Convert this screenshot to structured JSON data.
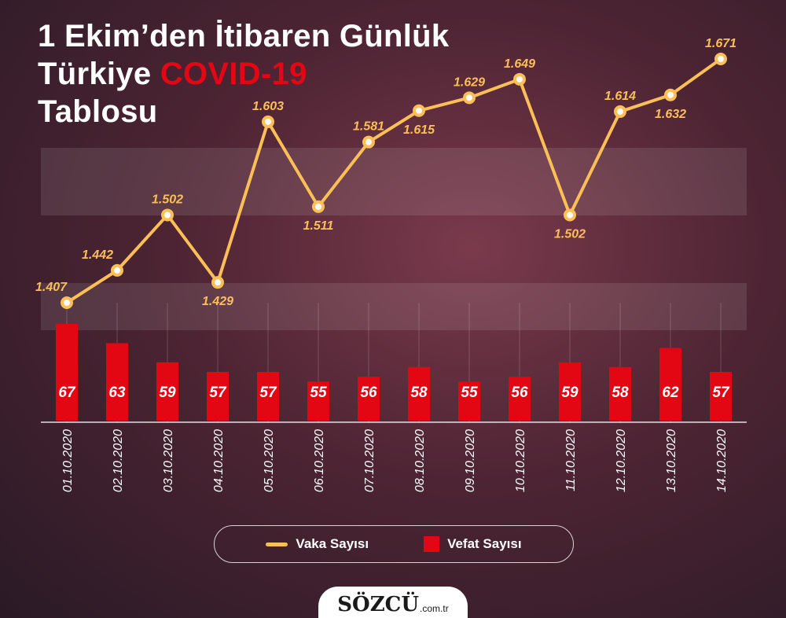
{
  "title": {
    "line1": "1 Ekim’den İtibaren Günlük",
    "line2_prefix": "Türkiye ",
    "line2_accent": "COVID-19",
    "line3": "Tablosu"
  },
  "colors": {
    "line": "#fbbf58",
    "bars": "#e30613",
    "accent": "#e30613"
  },
  "legend": {
    "line_label": "Vaka Sayısı",
    "bar_label": "Vefat Sayısı"
  },
  "logo": {
    "name": "SÖZCÜ",
    "suffix": ".com.tr"
  },
  "chart_data": {
    "type": "line+bar",
    "categories": [
      "01.10.2020",
      "02.10.2020",
      "03.10.2020",
      "04.10.2020",
      "05.10.2020",
      "06.10.2020",
      "07.10.2020",
      "08.10.2020",
      "09.10.2020",
      "10.10.2020",
      "11.10.2020",
      "12.10.2020",
      "13.10.2020",
      "14.10.2020"
    ],
    "series": [
      {
        "name": "Vaka Sayısı",
        "kind": "line",
        "values": [
          1407,
          1442,
          1502,
          1429,
          1603,
          1511,
          1581,
          1615,
          1629,
          1649,
          1502,
          1614,
          1632,
          1671
        ],
        "labels": [
          "1.407",
          "1.442",
          "1.502",
          "1.429",
          "1.603",
          "1.511",
          "1.581",
          "1.615",
          "1.629",
          "1.649",
          "1.502",
          "1.614",
          "1.632",
          "1.671"
        ],
        "label_position": [
          "above",
          "above",
          "above",
          "below",
          "above",
          "below",
          "above",
          "below",
          "above",
          "above",
          "below",
          "above",
          "below",
          "above"
        ]
      },
      {
        "name": "Vefat Sayısı",
        "kind": "bar",
        "values": [
          67,
          63,
          59,
          57,
          57,
          55,
          56,
          58,
          55,
          56,
          59,
          58,
          62,
          57
        ],
        "labels": [
          "67",
          "63",
          "59",
          "57",
          "57",
          "55",
          "56",
          "58",
          "55",
          "56",
          "59",
          "58",
          "62",
          "57"
        ]
      }
    ],
    "x_tick_rotation": -90,
    "grid": false,
    "legend_position": "bottom"
  }
}
